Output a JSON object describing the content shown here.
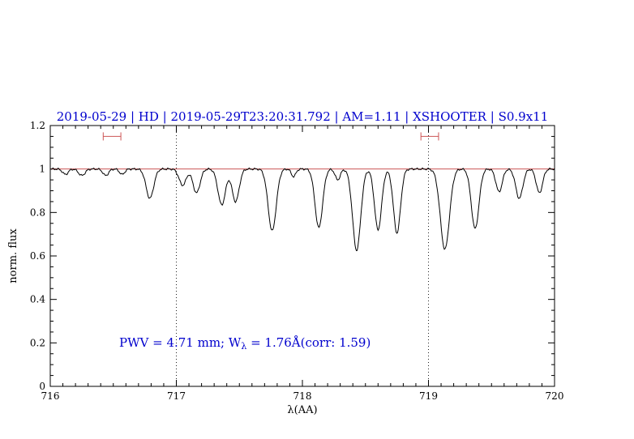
{
  "chart_data": {
    "type": "line",
    "title": "2019-05-29 | HD | 2019-05-29T23:20:31.792 | AM=1.11 | XSHOOTER | S0.9x11",
    "title_color": "#0000cd",
    "xlabel": "λ(AA)",
    "ylabel": "norm. flux",
    "xlim": [
      716,
      720
    ],
    "ylim": [
      0,
      1.2
    ],
    "x_tick_values": [
      716,
      717,
      718,
      719,
      720
    ],
    "x_tick_labels": [
      "716",
      "717",
      "718",
      "719",
      "720"
    ],
    "y_tick_values": [
      0,
      0.2,
      0.4,
      0.6,
      0.8,
      1,
      1.2
    ],
    "y_tick_labels": [
      "0",
      "0.2",
      "0.4",
      "0.6",
      "0.8",
      "1",
      "1.2"
    ],
    "x_minor_step": 0.1,
    "y_minor_step": 0.05,
    "line_color": "#000000",
    "continuum": {
      "y": 1.0,
      "color": "#cc5555"
    },
    "dotted_vlines": {
      "x": [
        717,
        719
      ],
      "color": "#222222"
    },
    "range_markers": {
      "y": 1.15,
      "color": "#cc5555",
      "intervals": [
        [
          716.42,
          716.56
        ],
        [
          718.94,
          719.08
        ]
      ]
    },
    "absorption_lines": [
      [
        716.12,
        0.025,
        0.022
      ],
      [
        716.25,
        0.03,
        0.025
      ],
      [
        716.44,
        0.03,
        0.022
      ],
      [
        716.57,
        0.025,
        0.02
      ],
      [
        716.79,
        0.135,
        0.03
      ],
      [
        717.05,
        0.075,
        0.028
      ],
      [
        717.16,
        0.11,
        0.028
      ],
      [
        717.36,
        0.165,
        0.03
      ],
      [
        717.47,
        0.15,
        0.028
      ],
      [
        717.76,
        0.285,
        0.032
      ],
      [
        717.93,
        0.035,
        0.018
      ],
      [
        718.13,
        0.27,
        0.03
      ],
      [
        718.28,
        0.05,
        0.02
      ],
      [
        718.43,
        0.375,
        0.032
      ],
      [
        718.6,
        0.28,
        0.028
      ],
      [
        718.75,
        0.295,
        0.028
      ],
      [
        719.13,
        0.37,
        0.036
      ],
      [
        719.37,
        0.275,
        0.03
      ],
      [
        719.56,
        0.105,
        0.025
      ],
      [
        719.72,
        0.135,
        0.028
      ],
      [
        719.88,
        0.11,
        0.025
      ]
    ]
  },
  "annotation": {
    "prefix": "PWV = 4.71 mm; W",
    "sub": "λ",
    "suffix": " = 1.76Å(corr: 1.59)",
    "color": "#0000cd"
  }
}
